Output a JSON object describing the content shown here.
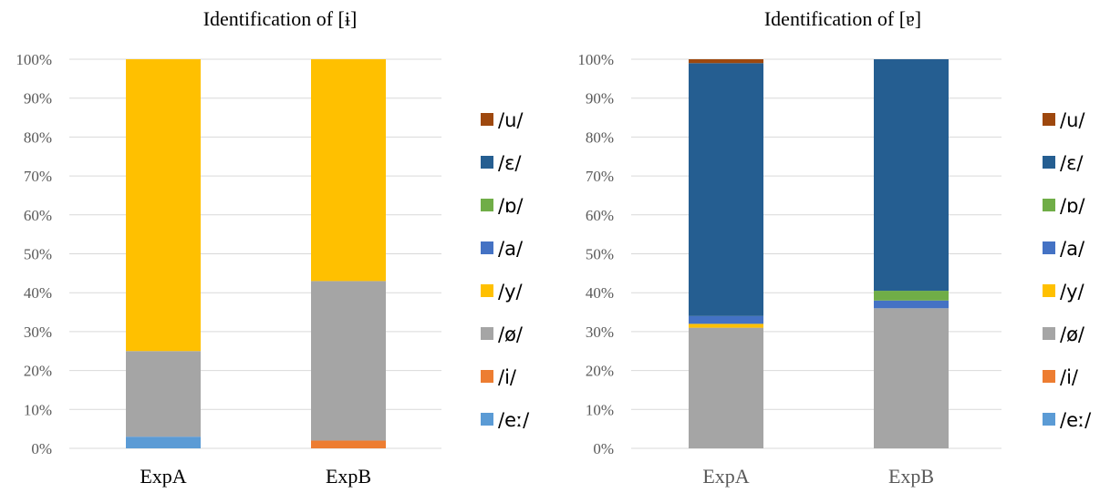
{
  "chart_data": [
    {
      "type": "bar",
      "stacked": true,
      "title": "Identification of [ɨ]",
      "categories": [
        "ExpA",
        "ExpB"
      ],
      "ylim": [
        0,
        100
      ],
      "y_ticks": [
        "0%",
        "10%",
        "20%",
        "30%",
        "40%",
        "50%",
        "60%",
        "70%",
        "80%",
        "90%",
        "100%"
      ],
      "grid": true,
      "legend_position": "right",
      "series": [
        {
          "name": "/eː/",
          "color": "#5b9bd5",
          "values": [
            3,
            0
          ]
        },
        {
          "name": "/i/",
          "color": "#ed7d31",
          "values": [
            0,
            2
          ]
        },
        {
          "name": "/ø/",
          "color": "#a5a5a5",
          "values": [
            22,
            41
          ]
        },
        {
          "name": "/y/",
          "color": "#ffc000",
          "values": [
            75,
            57
          ]
        },
        {
          "name": "/a/",
          "color": "#4472c4",
          "values": [
            0,
            0
          ]
        },
        {
          "name": "/ɒ/",
          "color": "#70ad47",
          "values": [
            0,
            0
          ]
        },
        {
          "name": "/ɛ/",
          "color": "#255e91",
          "values": [
            0,
            0
          ]
        },
        {
          "name": "/u/",
          "color": "#9e480e",
          "values": [
            0,
            0
          ]
        }
      ]
    },
    {
      "type": "bar",
      "stacked": true,
      "title": "Identification of [ɐ]",
      "categories": [
        "ExpA",
        "ExpB"
      ],
      "ylim": [
        0,
        100
      ],
      "y_ticks": [
        "0%",
        "10%",
        "20%",
        "30%",
        "40%",
        "50%",
        "60%",
        "70%",
        "80%",
        "90%",
        "100%"
      ],
      "grid": true,
      "legend_position": "right",
      "series": [
        {
          "name": "/eː/",
          "color": "#5b9bd5",
          "values": [
            0,
            0
          ]
        },
        {
          "name": "/i/",
          "color": "#ed7d31",
          "values": [
            0,
            0
          ]
        },
        {
          "name": "/ø/",
          "color": "#a5a5a5",
          "values": [
            31,
            36
          ]
        },
        {
          "name": "/y/",
          "color": "#ffc000",
          "values": [
            1,
            0
          ]
        },
        {
          "name": "/a/",
          "color": "#4472c4",
          "values": [
            2,
            2
          ]
        },
        {
          "name": "/ɒ/",
          "color": "#70ad47",
          "values": [
            0,
            2.5
          ]
        },
        {
          "name": "/ɛ/",
          "color": "#255e91",
          "values": [
            65,
            59.5
          ]
        },
        {
          "name": "/u/",
          "color": "#9e480e",
          "values": [
            1,
            0
          ]
        }
      ]
    }
  ],
  "x_tick_colors": [
    "#000000",
    "#595959"
  ]
}
